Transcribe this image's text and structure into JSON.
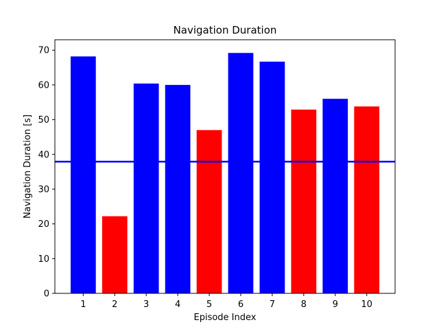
{
  "chart_data": {
    "type": "bar",
    "title": "Navigation Duration",
    "xlabel": "Episode Index",
    "ylabel": "Navigation Duration [s]",
    "categories": [
      "1",
      "2",
      "3",
      "4",
      "5",
      "6",
      "7",
      "8",
      "9",
      "10"
    ],
    "values": [
      68.2,
      22.2,
      60.4,
      60.0,
      47.0,
      69.2,
      66.7,
      52.9,
      56.0,
      53.8
    ],
    "bar_colors": [
      "#0000ff",
      "#ff0000",
      "#0000ff",
      "#0000ff",
      "#ff0000",
      "#0000ff",
      "#0000ff",
      "#ff0000",
      "#0000ff",
      "#ff0000"
    ],
    "reference_line": {
      "value": 37.9,
      "color": "#0000ff"
    },
    "ylim": [
      0,
      73
    ],
    "yticks": [
      0,
      10,
      20,
      30,
      40,
      50,
      60,
      70
    ],
    "grid": false,
    "legend": "none"
  }
}
